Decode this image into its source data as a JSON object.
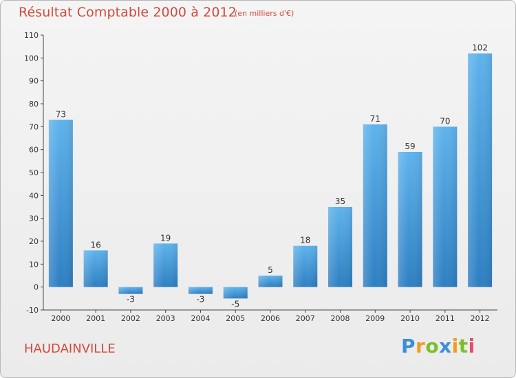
{
  "title": "Résultat Comptable 2000 à 2012",
  "subtitle": "(en milliers d'€)",
  "location": "HAUDAINVILLE",
  "logo": {
    "letters": [
      "P",
      "r",
      "o",
      "x",
      "i",
      "t",
      "i"
    ],
    "colors": [
      "#3a8fd8",
      "#f39a1e",
      "#7bbf2a",
      "#3a8fd8",
      "#f39a1e",
      "#7bbf2a",
      "#e94b6a"
    ]
  },
  "colors": {
    "bar_top": "#5fb3ec",
    "bar_bottom": "#2e7fc2",
    "accent": "#d24a3a",
    "axis": "#444444"
  },
  "chart_data": {
    "type": "bar",
    "title": "Résultat Comptable 2000 à 2012",
    "subtitle": "(en milliers d'€)",
    "xlabel": "",
    "ylabel": "",
    "categories": [
      "2000",
      "2001",
      "2002",
      "2003",
      "2004",
      "2005",
      "2006",
      "2007",
      "2008",
      "2009",
      "2010",
      "2011",
      "2012"
    ],
    "values": [
      73,
      16,
      -3,
      19,
      -3,
      -5,
      5,
      18,
      35,
      71,
      59,
      70,
      102
    ],
    "ylim": [
      -10,
      110
    ],
    "yticks": [
      -10,
      0,
      10,
      20,
      30,
      40,
      50,
      60,
      70,
      80,
      90,
      100,
      110
    ],
    "grid": false
  }
}
